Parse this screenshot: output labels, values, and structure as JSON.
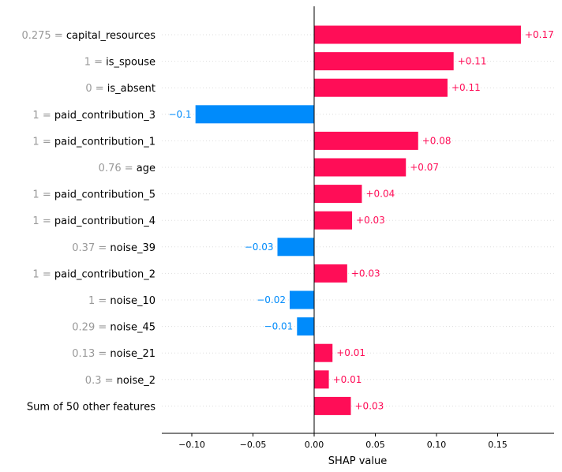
{
  "chart_data": {
    "type": "bar",
    "orientation": "horizontal",
    "xlabel": "SHAP value",
    "xlim": [
      -0.125,
      0.198
    ],
    "x_ticks": [
      -0.1,
      -0.05,
      0.0,
      0.05,
      0.1,
      0.15
    ],
    "x_tick_labels": [
      "−0.10",
      "−0.05",
      "0.00",
      "0.05",
      "0.10",
      "0.15"
    ],
    "grid": false,
    "colors": {
      "positive": "#ff0d57",
      "negative": "#008bfb",
      "feature_value": "#999999",
      "row_guide": "#dddddd"
    },
    "rows": [
      {
        "feature": "capital_resources",
        "feature_value": "0.275 = ",
        "value": 0.169,
        "label": "+0.17"
      },
      {
        "feature": "is_spouse",
        "feature_value": "1 = ",
        "value": 0.114,
        "label": "+0.11"
      },
      {
        "feature": "is_absent",
        "feature_value": "0 = ",
        "value": 0.109,
        "label": "+0.11"
      },
      {
        "feature": "paid_contribution_3",
        "feature_value": "1 = ",
        "value": -0.097,
        "label": "−0.1"
      },
      {
        "feature": "paid_contribution_1",
        "feature_value": "1 = ",
        "value": 0.085,
        "label": "+0.08"
      },
      {
        "feature": "age",
        "feature_value": "0.76 = ",
        "value": 0.075,
        "label": "+0.07"
      },
      {
        "feature": "paid_contribution_5",
        "feature_value": "1 = ",
        "value": 0.039,
        "label": "+0.04"
      },
      {
        "feature": "paid_contribution_4",
        "feature_value": "1 = ",
        "value": 0.031,
        "label": "+0.03"
      },
      {
        "feature": "noise_39",
        "feature_value": "0.37 = ",
        "value": -0.03,
        "label": "−0.03"
      },
      {
        "feature": "paid_contribution_2",
        "feature_value": "1 = ",
        "value": 0.027,
        "label": "+0.03"
      },
      {
        "feature": "noise_10",
        "feature_value": "1 = ",
        "value": -0.02,
        "label": "−0.02"
      },
      {
        "feature": "noise_45",
        "feature_value": "0.29 = ",
        "value": -0.014,
        "label": "−0.01"
      },
      {
        "feature": "noise_21",
        "feature_value": "0.13 = ",
        "value": 0.015,
        "label": "+0.01"
      },
      {
        "feature": "noise_2",
        "feature_value": "0.3 = ",
        "value": 0.012,
        "label": "+0.01"
      },
      {
        "feature": "Sum of 50 other features",
        "feature_value": "",
        "value": 0.03,
        "label": "+0.03"
      }
    ]
  }
}
